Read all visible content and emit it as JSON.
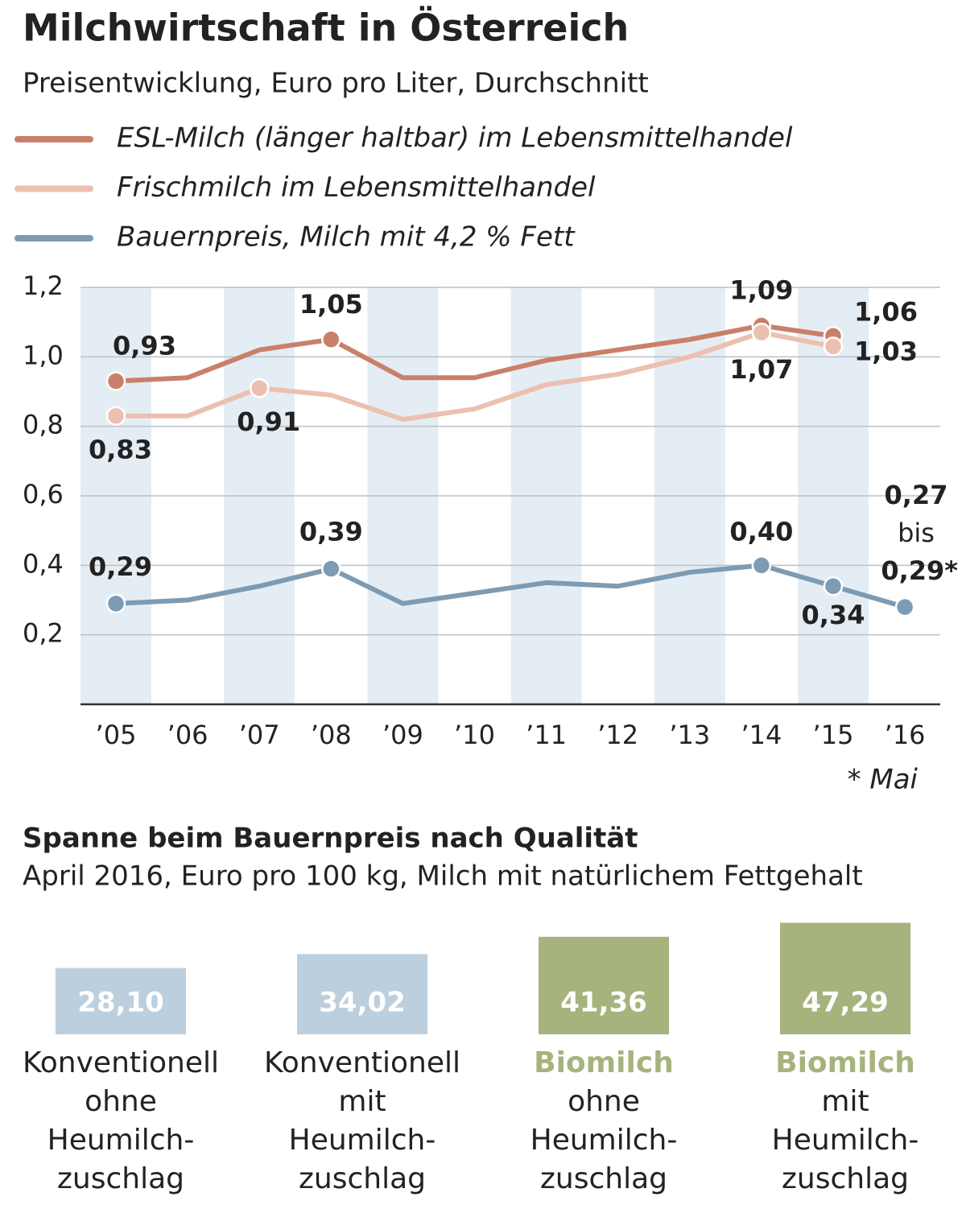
{
  "chart_data": [
    {
      "type": "line",
      "title": "Milchwirtschaft in Österreich",
      "subtitle": "Preisentwicklung, Euro pro Liter, Durchschnitt",
      "categories": [
        "’05",
        "’06",
        "’07",
        "’08",
        "’09",
        "’10",
        "’11",
        "’12",
        "’13",
        "’14",
        "’15",
        "’16"
      ],
      "series": [
        {
          "name": "ESL-Milch (länger haltbar) im Lebensmittelhandel",
          "color": "#c9806a",
          "values": [
            0.93,
            0.94,
            1.02,
            1.05,
            0.94,
            0.94,
            0.99,
            1.02,
            1.05,
            1.09,
            1.06,
            null
          ],
          "value_labels": [
            "0,93",
            null,
            null,
            "1,05",
            null,
            null,
            null,
            null,
            null,
            "1,09",
            "1,06",
            null
          ]
        },
        {
          "name": "Frischmilch im Lebensmittelhandel",
          "color": "#ecc0b0",
          "values": [
            0.83,
            0.83,
            0.91,
            0.89,
            0.82,
            0.85,
            0.92,
            0.95,
            1.0,
            1.07,
            1.03,
            null
          ],
          "value_labels": [
            "0,83",
            null,
            "0,91",
            null,
            null,
            null,
            null,
            null,
            null,
            "1,07",
            "1,03",
            null
          ]
        },
        {
          "name": "Bauernpreis, Milch mit 4,2 % Fett",
          "color": "#7d9bb3",
          "values": [
            0.29,
            0.3,
            0.34,
            0.39,
            0.29,
            0.32,
            0.35,
            0.34,
            0.38,
            0.4,
            0.34,
            0.28
          ],
          "value_labels": [
            "0,29",
            null,
            null,
            "0,39",
            null,
            null,
            null,
            null,
            null,
            "0,40",
            "0,34",
            null
          ]
        }
      ],
      "annotations": [
        "0,27",
        "bis",
        "0,29*"
      ],
      "footnote": "* Mai",
      "ylim": [
        0,
        1.2
      ],
      "yticks": [
        {
          "value": 0.2,
          "label": "0,2"
        },
        {
          "value": 0.4,
          "label": "0,4"
        },
        {
          "value": 0.6,
          "label": "0,6"
        },
        {
          "value": 0.8,
          "label": "0,8"
        },
        {
          "value": 1.0,
          "label": "1,0"
        },
        {
          "value": 1.2,
          "label": "1,2"
        }
      ],
      "grid": true
    },
    {
      "type": "bar",
      "title": "Spanne beim Bauernpreis nach Qualität",
      "subtitle": "April 2016, Euro pro 100 kg, Milch mit natürlichem Fettgehalt",
      "categories": [
        [
          "Konventionell",
          "ohne",
          "Heumilch-",
          "zuschlag"
        ],
        [
          "Konventionell",
          "mit",
          "Heumilch-",
          "zuschlag"
        ],
        [
          "Biomilch",
          "ohne",
          "Heumilch-",
          "zuschlag"
        ],
        [
          "Biomilch",
          "mit",
          "Heumilch-",
          "zuschlag"
        ]
      ],
      "values": [
        28.1,
        34.02,
        41.36,
        47.29
      ],
      "value_labels": [
        "28,10",
        "34,02",
        "41,36",
        "47,29"
      ],
      "colors": [
        "#bccfde",
        "#bccfde",
        "#a6b37c",
        "#a6b37c"
      ],
      "label_colors": [
        "#222222",
        "#222222",
        "#a6b37c",
        "#a6b37c"
      ]
    }
  ]
}
